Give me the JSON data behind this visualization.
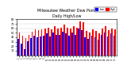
{
  "title1": "Milwaukee Weather Dew Point",
  "title2": "Daily High/Low",
  "background_color": "#ffffff",
  "grid_color": "#cccccc",
  "high_color": "#ff0000",
  "low_color": "#0000ff",
  "categories": [
    "1",
    "2",
    "3",
    "4",
    "5",
    "6",
    "7",
    "8",
    "9",
    "10",
    "11",
    "12",
    "13",
    "14",
    "15",
    "16",
    "17",
    "18",
    "19",
    "20",
    "21",
    "22",
    "23",
    "24",
    "25",
    "26",
    "27",
    "28",
    "29",
    "30",
    "31"
  ],
  "highs": [
    50,
    44,
    38,
    46,
    52,
    58,
    56,
    58,
    60,
    62,
    58,
    64,
    60,
    62,
    68,
    62,
    60,
    64,
    62,
    76,
    74,
    54,
    50,
    58,
    54,
    48,
    60,
    64,
    56,
    60,
    58
  ],
  "lows": [
    36,
    26,
    14,
    32,
    38,
    44,
    40,
    42,
    44,
    48,
    42,
    50,
    46,
    46,
    52,
    48,
    44,
    50,
    46,
    60,
    56,
    40,
    36,
    44,
    40,
    34,
    46,
    50,
    42,
    48,
    44
  ],
  "ylim": [
    0,
    80
  ],
  "yticks": [
    10,
    20,
    30,
    40,
    50,
    60,
    70,
    80
  ],
  "ylabel_fontsize": 3.0,
  "tick_fontsize": 2.5,
  "title_fontsize": 3.5,
  "subtitle_fontsize": 3.0
}
